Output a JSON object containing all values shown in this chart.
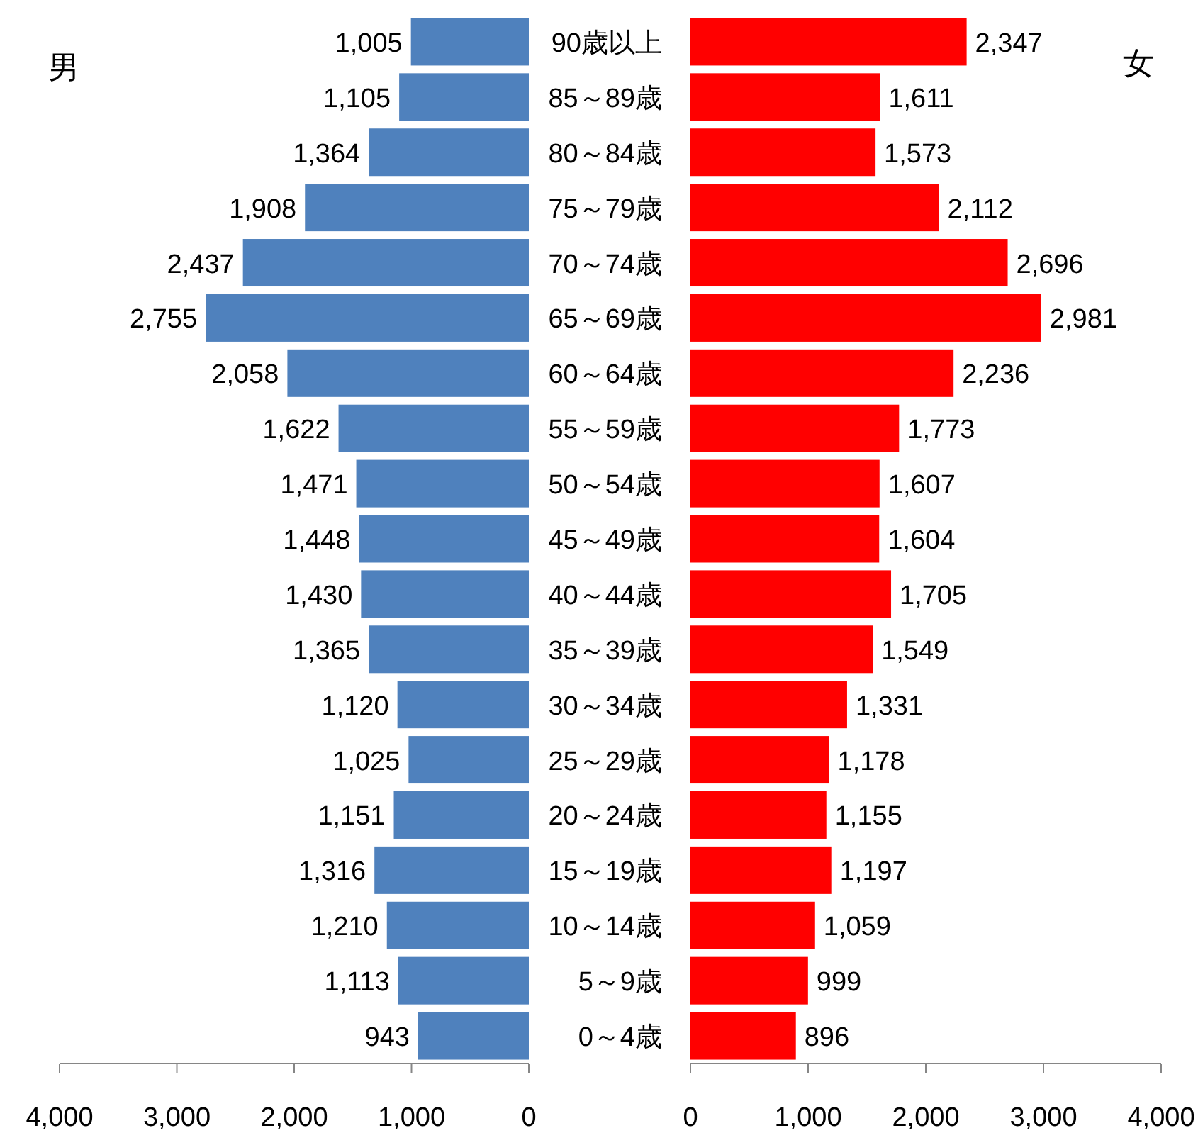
{
  "chart_data": [
    {
      "type": "bar",
      "orientation": "horizontal",
      "title": "男",
      "categories": [
        "90歳以上",
        "85～89歳",
        "80～84歳",
        "75～79歳",
        "70～74歳",
        "65～69歳",
        "60～64歳",
        "55～59歳",
        "50～54歳",
        "45～49歳",
        "40～44歳",
        "35～39歳",
        "30～34歳",
        "25～29歳",
        "20～24歳",
        "15～19歳",
        "10～14歳",
        "5～9歳",
        "0～4歳"
      ],
      "values": [
        1005,
        1105,
        1364,
        1908,
        2437,
        2755,
        2058,
        1622,
        1471,
        1448,
        1430,
        1365,
        1120,
        1025,
        1151,
        1316,
        1210,
        1113,
        943
      ],
      "value_labels": [
        "1,005",
        "1,105",
        "1,364",
        "1,908",
        "2,437",
        "2,755",
        "2,058",
        "1,622",
        "1,471",
        "1,448",
        "1,430",
        "1,365",
        "1,120",
        "1,025",
        "1,151",
        "1,316",
        "1,210",
        "1,113",
        "943"
      ],
      "color": "#4f81bd",
      "xlim": [
        4000,
        0
      ],
      "xticks": [
        {
          "value": 4000,
          "label": "4,000"
        },
        {
          "value": 3000,
          "label": "3,000"
        },
        {
          "value": 2000,
          "label": "2,000"
        },
        {
          "value": 1000,
          "label": "1,000"
        },
        0
      ]
    },
    {
      "type": "bar",
      "orientation": "horizontal",
      "title": "女",
      "categories": [
        null,
        null,
        null,
        null,
        null,
        null,
        null,
        null,
        null,
        null,
        null,
        null,
        null,
        null,
        null,
        null,
        null,
        null,
        null
      ],
      "values": [
        2347,
        1611,
        1573,
        2112,
        2696,
        2981,
        2236,
        1773,
        1607,
        1604,
        1705,
        1549,
        1331,
        1178,
        1155,
        1197,
        1059,
        999,
        896
      ],
      "value_labels": [
        "2,347",
        "1,611",
        "1,573",
        "2,112",
        "2,696",
        "2,981",
        "2,236",
        "1,773",
        "1,607",
        "1,604",
        "1,705",
        "1,549",
        "1,331",
        "1,178",
        "1,155",
        "1,197",
        "1,059",
        "999",
        "896"
      ],
      "color": "#ff0000",
      "xlim": [
        0,
        4000
      ],
      "xticks": [
        0,
        {
          "value": 1000,
          "label": "1,000"
        },
        {
          "value": 2000,
          "label": "2,000"
        },
        {
          "value": 3000,
          "label": "3,000"
        },
        {
          "value": 4000,
          "label": "4,000"
        }
      ]
    }
  ]
}
